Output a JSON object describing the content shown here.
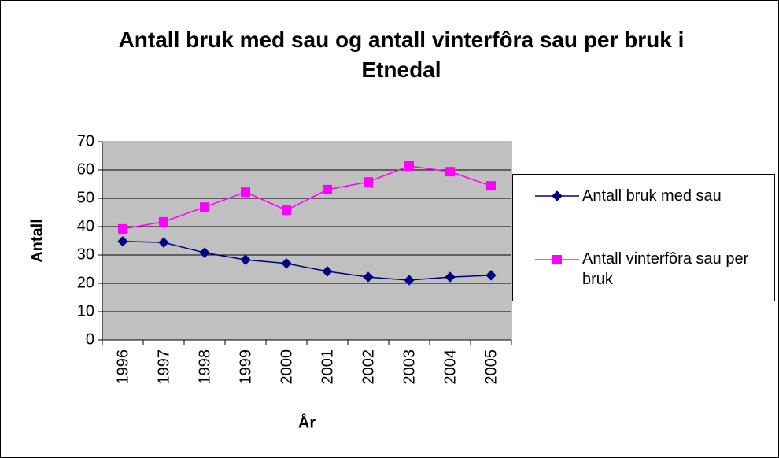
{
  "chart_data": {
    "type": "line",
    "title": "Antall bruk med sau og antall vinterfôra sau per bruk i Etnedal",
    "x_label": "År",
    "y_label": "Antall",
    "categories": [
      "1996",
      "1997",
      "1998",
      "1999",
      "2000",
      "2001",
      "2002",
      "2003",
      "2004",
      "2005"
    ],
    "series": [
      {
        "name": "Antall bruk med sau",
        "color": "#000080",
        "marker": "diamond",
        "values": [
          34.8,
          34.4,
          30.8,
          28.3,
          27.0,
          24.2,
          22.2,
          21.1,
          22.2,
          22.8
        ]
      },
      {
        "name": "Antall vinterfôra sau per bruk",
        "color": "#ff00ff",
        "marker": "square",
        "values": [
          39.2,
          41.7,
          46.9,
          52.2,
          45.8,
          53.1,
          55.8,
          61.4,
          59.4,
          54.4
        ]
      }
    ],
    "ylim": [
      0,
      70
    ],
    "yticks": [
      0,
      10,
      20,
      30,
      40,
      50,
      60,
      70
    ],
    "grid": true,
    "legend": "right"
  }
}
